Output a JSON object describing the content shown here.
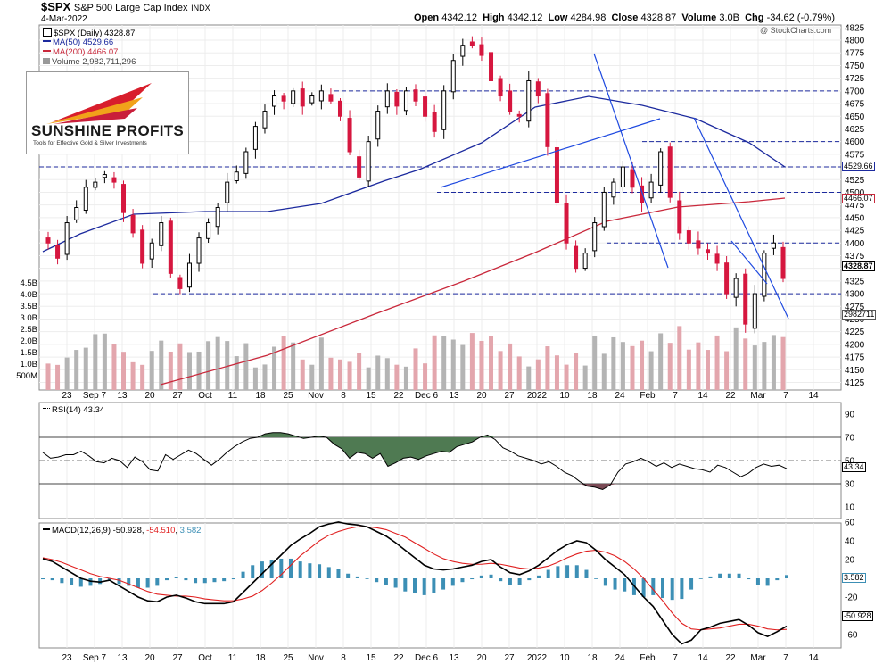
{
  "header": {
    "symbol": "$SPX",
    "name": "S&P 500 Large Cap Index",
    "exchange": "INDX",
    "date": "4-Mar-2022",
    "open_label": "Open",
    "open": "4342.12",
    "high_label": "High",
    "high": "4342.12",
    "low_label": "Low",
    "low": "4284.98",
    "close_label": "Close",
    "close": "4328.87",
    "volume_label": "Volume",
    "volume": "3.0B",
    "chg_label": "Chg",
    "chg": "-34.62 (-0.79%)",
    "watermark": "@ StockCharts.com"
  },
  "legend": {
    "price": "$SPX (Daily) 4328.87",
    "ma50": "MA(50) 4529.66",
    "ma200": "MA(200) 4466.07",
    "volume": "Volume 2,982,711,296",
    "rsi": "RSI(14) 43.34",
    "macd_prefix": "MACD(12,26,9)",
    "macd_val": "-50.928",
    "macd_sig": "-54.510",
    "macd_hist": "3.582"
  },
  "logo": {
    "name": "SUNSHINE PROFITS",
    "tagline": "Tools for Effective Gold & Silver Investments"
  },
  "boxes": {
    "ma50": "4529.66",
    "ma200": "4466.07",
    "close": "4328.87",
    "volume": "2982711",
    "rsi": "43.34",
    "macd_hist": "3.582",
    "macd": "-50.928"
  },
  "colors": {
    "up": "#000000",
    "down": "#d6173f",
    "ma50": "#1c2a9e",
    "ma200": "#c9283b",
    "trend": "#1f4ae0",
    "vol_up": "#b4b4b4",
    "vol_down": "#e3a6ad",
    "rsi_above": "#4f7a52",
    "rsi_below": "#7a4a55",
    "macd_hist": "#3c8fb5",
    "macd_signal": "#e02020"
  },
  "chart_data": [
    {
      "type": "candlestick",
      "title": "$SPX S&P 500 Large Cap Index INDX",
      "x_tick_labels": [
        "23",
        "Sep 7",
        "13",
        "20",
        "27",
        "Oct",
        "11",
        "18",
        "25",
        "Nov",
        "8",
        "15",
        "22",
        "Dec 6",
        "13",
        "20",
        "27",
        "2022",
        "10",
        "18",
        "24",
        "Feb",
        "7",
        "14",
        "22",
        "Mar",
        "7",
        "14"
      ],
      "y_ticks": [
        4125,
        4150,
        4175,
        4200,
        4225,
        4250,
        4275,
        4300,
        4325,
        4350,
        4375,
        4400,
        4425,
        4450,
        4475,
        4500,
        4525,
        4550,
        4575,
        4600,
        4625,
        4650,
        4675,
        4700,
        4725,
        4750,
        4775,
        4800,
        4825
      ],
      "ylim": [
        4110,
        4830
      ],
      "volume_ticks": [
        "500M",
        "1.0B",
        "1.5B",
        "2.0B",
        "2.5B",
        "3.0B",
        "3.5B",
        "4.0B",
        "4.5B"
      ],
      "horizontal_levels": [
        4700,
        4600,
        4550,
        4500,
        4400,
        4300
      ],
      "moving_averages": {
        "MA(50)": 4529.66,
        "MA(200)": 4466.07
      },
      "last": {
        "open": 4342.12,
        "high": 4342.12,
        "low": 4284.98,
        "close": 4328.87,
        "volume": 2982711296
      },
      "close_path_approx": [
        4400,
        4370,
        4440,
        4470,
        4510,
        4520,
        4535,
        4520,
        4460,
        4420,
        4360,
        4400,
        4440,
        4340,
        4310,
        4360,
        4410,
        4440,
        4470,
        4520,
        4540,
        4580,
        4630,
        4660,
        4690,
        4680,
        4700,
        4670,
        4690,
        4700,
        4680,
        4650,
        4580,
        4530,
        4600,
        4660,
        4700,
        4670,
        4700,
        4680,
        4650,
        4620,
        4700,
        4760,
        4790,
        4790,
        4770,
        4720,
        4690,
        4660,
        4650,
        4720,
        4690,
        4590,
        4480,
        4400,
        4350,
        4380,
        4440,
        4500,
        4520,
        4550,
        4510,
        4480,
        4520,
        4580,
        4490,
        4420,
        4400,
        4390,
        4380,
        4360,
        4300,
        4330,
        4240,
        4300,
        4380,
        4400,
        4330
      ]
    },
    {
      "type": "line",
      "title": "RSI(14)",
      "y_ticks": [
        10,
        30,
        50,
        70,
        90
      ],
      "ylim": [
        0,
        100
      ],
      "last": 43.34,
      "values": [
        57,
        52,
        53,
        55,
        55,
        58,
        54,
        49,
        48,
        52,
        50,
        44,
        53,
        49,
        42,
        41,
        55,
        51,
        55,
        59,
        56,
        51,
        46,
        51,
        57,
        62,
        66,
        69,
        70,
        73,
        74,
        74,
        73,
        71,
        69,
        70,
        71,
        70,
        64,
        60,
        52,
        57,
        56,
        52,
        56,
        45,
        48,
        52,
        53,
        51,
        54,
        56,
        58,
        57,
        62,
        64,
        66,
        70,
        72,
        68,
        61,
        58,
        54,
        52,
        50,
        47,
        49,
        45,
        40,
        37,
        32,
        28,
        27,
        25,
        29,
        40,
        47,
        49,
        52,
        49,
        45,
        48,
        44,
        47,
        45,
        43,
        42,
        40,
        46,
        44,
        40,
        36,
        39,
        44,
        47,
        45,
        46,
        43
      ]
    },
    {
      "type": "bar+line",
      "title": "MACD(12,26,9)",
      "y_ticks": [
        -60,
        -40,
        -20,
        0,
        20,
        40,
        60
      ],
      "ylim": [
        -80,
        75
      ],
      "last": {
        "macd": -50.928,
        "signal": -54.51,
        "histogram": 3.582
      },
      "macd": [
        21,
        18,
        12,
        6,
        0,
        -3,
        -4,
        -2,
        -8,
        -14,
        -20,
        -24,
        -25,
        -20,
        -18,
        -21,
        -25,
        -27,
        -27,
        -27,
        -25,
        -15,
        -5,
        5,
        15,
        25,
        35,
        42,
        48,
        55,
        58,
        60,
        58,
        57,
        55,
        50,
        45,
        38,
        30,
        22,
        14,
        10,
        9,
        10,
        12,
        14,
        18,
        20,
        12,
        6,
        4,
        8,
        14,
        22,
        30,
        36,
        40,
        38,
        30,
        20,
        12,
        4,
        -8,
        -20,
        -30,
        -45,
        -60,
        -70,
        -66,
        -55,
        -52,
        -48,
        -46,
        -44,
        -50,
        -58,
        -62,
        -57,
        -51
      ],
      "signal": [
        22,
        20,
        17,
        13,
        9,
        5,
        2,
        0,
        -2,
        -6,
        -10,
        -14,
        -17,
        -18,
        -19,
        -19,
        -20,
        -22,
        -23,
        -24,
        -24,
        -22,
        -19,
        -13,
        -5,
        4,
        14,
        24,
        32,
        40,
        46,
        50,
        53,
        55,
        55,
        54,
        52,
        48,
        44,
        38,
        32,
        26,
        21,
        18,
        16,
        15,
        15,
        16,
        15,
        13,
        11,
        10,
        11,
        13,
        17,
        22,
        26,
        29,
        30,
        28,
        24,
        18,
        10,
        0,
        -12,
        -24,
        -37,
        -48,
        -54,
        -55,
        -54,
        -53,
        -51,
        -49,
        -49,
        -51,
        -54,
        -55,
        -54.5
      ]
    }
  ]
}
